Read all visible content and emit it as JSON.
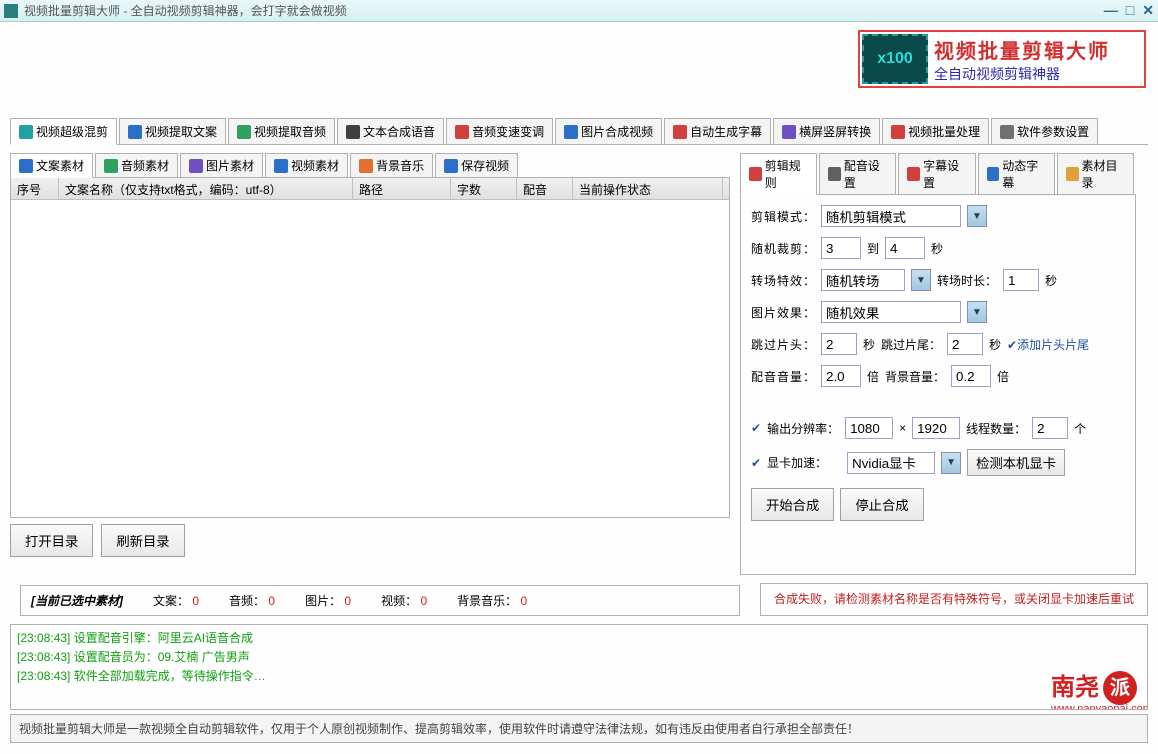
{
  "app": {
    "title": "视频批量剪辑大师 - 全自动视频剪辑神器，会打字就会做视频"
  },
  "banner": {
    "x100": "x100",
    "line1": "视频批量剪辑大师",
    "line2": "全自动视频剪辑神器"
  },
  "maintabs": [
    "视频超级混剪",
    "视频提取文案",
    "视频提取音频",
    "文本合成语音",
    "音频变速变调",
    "图片合成视频",
    "自动生成字幕",
    "横屏竖屏转换",
    "视频批量处理",
    "软件参数设置"
  ],
  "leftsubtabs": [
    "文案素材",
    "音频素材",
    "图片素材",
    "视频素材",
    "背景音乐",
    "保存视频"
  ],
  "rightsubtabs": [
    "剪辑规则",
    "配音设置",
    "字幕设置",
    "动态字幕",
    "素材目录"
  ],
  "table": {
    "cols": [
      "序号",
      "文案名称（仅支持txt格式，编码：utf-8）",
      "路径",
      "字数",
      "配音",
      "当前操作状态"
    ],
    "widths": [
      48,
      294,
      98,
      66,
      56,
      150
    ]
  },
  "buttons": {
    "opendir": "打开目录",
    "refreshdir": "刷新目录",
    "start": "开始合成",
    "stop": "停止合成",
    "detectgpu": "检测本机显卡"
  },
  "status": {
    "label": "[当前已选中素材]",
    "items": [
      [
        "文案：",
        "0"
      ],
      [
        "音频：",
        "0"
      ],
      [
        "图片：",
        "0"
      ],
      [
        "视频：",
        "0"
      ],
      [
        "背景音乐：",
        "0"
      ]
    ]
  },
  "rules": {
    "editmode_lbl": "剪辑模式：",
    "editmode": "随机剪辑模式",
    "randcrop_lbl": "随机裁剪：",
    "randcrop_from": "3",
    "randcrop_to_lbl": "到",
    "randcrop_to": "4",
    "randcrop_unit": "秒",
    "trans_lbl": "转场特效：",
    "trans": "随机转场",
    "trans_dur_lbl": "转场时长：",
    "trans_dur": "1",
    "trans_unit": "秒",
    "imgfx_lbl": "图片效果：",
    "imgfx": "随机效果",
    "skiphead_lbl": "跳过片头：",
    "skiphead": "2",
    "skiphead_unit": "秒",
    "skiptail_lbl": "跳过片尾：",
    "skiptail": "2",
    "skiptail_unit": "秒",
    "addheadtail": "添加片头片尾",
    "voicevol_lbl": "配音音量：",
    "voicevol": "2.0",
    "voicevol_unit": "倍",
    "bgvol_lbl": "背景音量：",
    "bgvol": "0.2",
    "bgvol_unit": "倍",
    "outres_lbl": "输出分辨率：",
    "outres_w": "1080",
    "x": "×",
    "outres_h": "1920",
    "threads_lbl": "线程数量：",
    "threads": "2",
    "threads_unit": "个",
    "gpu_lbl": "显卡加速：",
    "gpu": "Nvidia显卡"
  },
  "err": "合成失败，请检测素材名称是否有特殊符号，或关闭显卡加速后重试",
  "logs": [
    "[23:08:43] 设置配音引擎：阿里云AI语音合成",
    "[23:08:43] 设置配音员为：09.艾楠 广告男声",
    "[23:08:43] 软件全部加载完成，等待操作指令…"
  ],
  "watermark": {
    "t1": "南尧",
    "t2": "派",
    "url": "www.nanyaopai.com"
  },
  "footer": "视频批量剪辑大师是一款视频全自动剪辑软件，仅用于个人原创视频制作、提高剪辑效率，使用软件时请遵守法律法规，如有违反由使用者自行承担全部责任！",
  "colors": {
    "iconblue": "#2a70c8",
    "icongreen": "#30a060",
    "iconteal": "#20a0a0",
    "iconorange": "#e07030",
    "iconred": "#d04040",
    "iconpurple": "#7050c0",
    "iconfolder": "#e0a040"
  }
}
